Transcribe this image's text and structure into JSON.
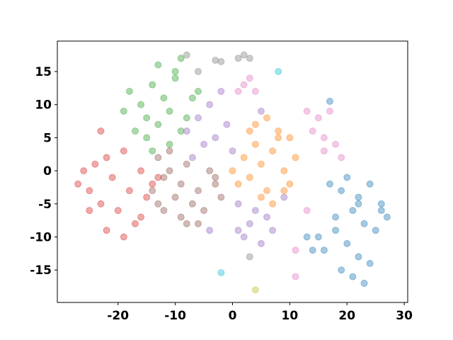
{
  "chart_data": {
    "type": "scatter",
    "xlim": [
      -30.6,
      30.6
    ],
    "ylim": [
      -19.9,
      19.6
    ],
    "xticks": [
      -20,
      -10,
      0,
      10,
      20,
      30
    ],
    "yticks": [
      -15,
      -10,
      -5,
      0,
      5,
      10,
      15
    ],
    "grid": false,
    "series": [
      {
        "color": "#1f77b4",
        "x": [
          17,
          19,
          20,
          22,
          24,
          26,
          27,
          18,
          21,
          23,
          25,
          15,
          16,
          20,
          22,
          24,
          19,
          13,
          14,
          21,
          23,
          26,
          17,
          22,
          18
        ],
        "values": [
          -2,
          -3,
          -1,
          -4,
          -2,
          -5,
          -7,
          -7,
          -6,
          -8,
          -9,
          -10,
          -12,
          -11,
          -13,
          -14,
          -15,
          -10,
          -12,
          -16,
          -17,
          -6,
          10.5,
          -5,
          -9
        ]
      },
      {
        "color": "#ff7f0e",
        "x": [
          0,
          2,
          3,
          4,
          5,
          6,
          7,
          8,
          9,
          10,
          11,
          3,
          5,
          7,
          9,
          1,
          4,
          6,
          8,
          10
        ],
        "values": [
          0,
          2,
          -1,
          4,
          1,
          -3,
          3,
          5,
          0,
          -2,
          2,
          6,
          -4,
          -5,
          -3,
          -2,
          7,
          8,
          6,
          5
        ]
      },
      {
        "color": "#2ca02c",
        "x": [
          -18,
          -16,
          -15,
          -14,
          -13,
          -12,
          -11,
          -10,
          -9,
          -8,
          -7,
          -17,
          -15,
          -13,
          -11,
          -9,
          -6,
          -14,
          -10,
          -19
        ],
        "values": [
          12,
          10,
          8,
          13,
          16,
          11,
          9,
          14,
          17,
          8,
          11,
          6,
          5,
          7,
          4,
          6,
          12,
          3,
          15,
          9
        ]
      },
      {
        "color": "#d62728",
        "x": [
          -27,
          -26,
          -25,
          -24,
          -23,
          -22,
          -21,
          -20,
          -19,
          -18,
          -17,
          -16,
          -15,
          -14,
          -13,
          -25,
          -22,
          -19,
          -23,
          -16
        ],
        "values": [
          -2,
          0,
          -3,
          1,
          -5,
          2,
          -1,
          -6,
          3,
          -3,
          -8,
          0,
          -4,
          -2,
          -1,
          -6,
          -9,
          -10,
          6,
          -7
        ]
      },
      {
        "color": "#9467bd",
        "x": [
          -8,
          -6,
          -5,
          -4,
          -3,
          -2,
          -1,
          0,
          1,
          2,
          3,
          4,
          5,
          6,
          7,
          -7,
          -4,
          1,
          5,
          9
        ],
        "values": [
          6,
          8,
          4,
          10,
          5,
          12,
          7,
          3,
          -9,
          -10,
          -8,
          -6,
          -11,
          -7,
          -9,
          2,
          -9,
          -5,
          9,
          -4
        ]
      },
      {
        "color": "#8c564b",
        "x": [
          -14,
          -13,
          -12,
          -11,
          -10,
          -9,
          -8,
          -7,
          -6,
          -5,
          -4,
          -3,
          -2,
          -12,
          -9,
          -6,
          -3,
          -11,
          -8,
          -13
        ],
        "values": [
          -3,
          2,
          -1,
          0,
          -4,
          -2,
          1,
          -5,
          -3,
          -6,
          0,
          -2,
          -4,
          -6,
          -7,
          -8,
          -1,
          3,
          -8,
          -5
        ]
      },
      {
        "color": "#e377c2",
        "x": [
          1,
          2,
          3,
          4,
          13,
          14,
          15,
          16,
          17,
          18,
          19,
          13,
          11,
          11,
          16
        ],
        "values": [
          12,
          13,
          14,
          12,
          9,
          6,
          8,
          5,
          9,
          4,
          2,
          -6,
          -12,
          -16,
          3
        ]
      },
      {
        "color": "#7f7f7f",
        "x": [
          -3,
          -2,
          1,
          2,
          3,
          -6,
          -8,
          3
        ],
        "values": [
          16.7,
          16.5,
          17,
          17.5,
          17,
          15,
          17.5,
          -13
        ]
      },
      {
        "color": "#bcbd22",
        "x": [
          4
        ],
        "values": [
          -18
        ]
      },
      {
        "color": "#17becf",
        "x": [
          8,
          -2
        ],
        "values": [
          15,
          -15.4
        ]
      }
    ]
  }
}
